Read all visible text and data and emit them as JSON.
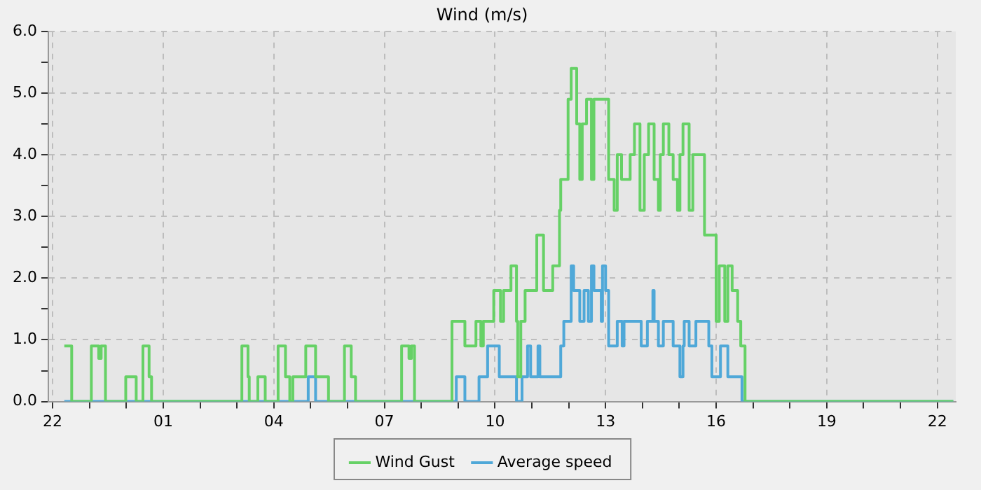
{
  "chart_data": {
    "type": "step",
    "title": "Wind (m/s)",
    "xlim": [
      "--01-01T21:53",
      "--01-02T22:30"
    ],
    "xticks": [
      {
        "value": "--01-01T22:00",
        "label": "22"
      },
      {
        "value": "--01-01T23:00",
        "label": null
      },
      {
        "value": "--01-02T00:00",
        "label": null
      },
      {
        "value": "--01-02T01:00",
        "label": "01"
      },
      {
        "value": "--01-02T02:00",
        "label": null
      },
      {
        "value": "--01-02T03:00",
        "label": null
      },
      {
        "value": "--01-02T04:00",
        "label": "04"
      },
      {
        "value": "--01-02T05:00",
        "label": null
      },
      {
        "value": "--01-02T06:00",
        "label": null
      },
      {
        "value": "--01-02T07:00",
        "label": "07"
      },
      {
        "value": "--01-02T08:00",
        "label": null
      },
      {
        "value": "--01-02T09:00",
        "label": null
      },
      {
        "value": "--01-02T10:00",
        "label": "10"
      },
      {
        "value": "--01-02T11:00",
        "label": null
      },
      {
        "value": "--01-02T12:00",
        "label": null
      },
      {
        "value": "--01-02T13:00",
        "label": "13"
      },
      {
        "value": "--01-02T14:00",
        "label": null
      },
      {
        "value": "--01-02T15:00",
        "label": null
      },
      {
        "value": "--01-02T16:00",
        "label": "16"
      },
      {
        "value": "--01-02T17:00",
        "label": null
      },
      {
        "value": "--01-02T18:00",
        "label": null
      },
      {
        "value": "--01-02T19:00",
        "label": "19"
      },
      {
        "value": "--01-02T20:00",
        "label": null
      },
      {
        "value": "--01-02T21:00",
        "label": null
      },
      {
        "value": "--01-02T22:00",
        "label": "22"
      }
    ],
    "ylim": [
      0,
      6
    ],
    "yticks": [
      {
        "value": 0,
        "label": "0.0"
      },
      {
        "value": 0.5,
        "label": null
      },
      {
        "value": 1,
        "label": "1.0"
      },
      {
        "value": 1.5,
        "label": null
      },
      {
        "value": 2,
        "label": "2.0"
      },
      {
        "value": 2.5,
        "label": null
      },
      {
        "value": 3,
        "label": "3.0"
      },
      {
        "value": 3.5,
        "label": null
      },
      {
        "value": 4,
        "label": "4.0"
      },
      {
        "value": 4.5,
        "label": null
      },
      {
        "value": 5,
        "label": "5.0"
      },
      {
        "value": 5.5,
        "label": null
      },
      {
        "value": 6,
        "label": "6.0"
      }
    ],
    "grid": true,
    "legend": "bottom",
    "marker": "none",
    "line_style": "solid",
    "series": [
      {
        "name": "Wind Gust",
        "color": "#66d166",
        "x": [
          "--01-01T22:19",
          "--01-01T22:31",
          "--01-01T23:03",
          "--01-01T23:15",
          "--01-01T23:19",
          "--01-01T23:26",
          "--01-01T23:59",
          "--01-02T00:16",
          "--01-02T00:27",
          "--01-02T00:37",
          "--01-02T00:41",
          "--01-02T03:08",
          "--01-02T03:18",
          "--01-02T03:20",
          "--01-02T03:34",
          "--01-02T03:46",
          "--01-02T04:07",
          "--01-02T04:19",
          "--01-02T04:26",
          "--01-02T04:31",
          "--01-02T04:52",
          "--01-02T05:08",
          "--01-02T05:29",
          "--01-02T05:55",
          "--01-02T06:06",
          "--01-02T06:13",
          "--01-02T07:28",
          "--01-02T07:40",
          "--01-02T07:44",
          "--01-02T07:49",
          "--01-02T08:50",
          "--01-02T09:11",
          "--01-02T09:29",
          "--01-02T09:37",
          "--01-02T09:41",
          "--01-02T09:58",
          "--01-02T10:09",
          "--01-02T10:14",
          "--01-02T10:26",
          "--01-02T10:35",
          "--01-02T10:37",
          "--01-02T10:42",
          "--01-02T10:49",
          "--01-02T11:08",
          "--01-02T11:19",
          "--01-02T11:34",
          "--01-02T11:45",
          "--01-02T11:47",
          "--01-02T11:59",
          "--01-02T12:04",
          "--01-02T12:13",
          "--01-02T12:18",
          "--01-02T12:22",
          "--01-02T12:29",
          "--01-02T12:37",
          "--01-02T12:41",
          "--01-02T13:05",
          "--01-02T13:14",
          "--01-02T13:19",
          "--01-02T13:26",
          "--01-02T13:40",
          "--01-02T13:47",
          "--01-02T13:56",
          "--01-02T14:03",
          "--01-02T14:10",
          "--01-02T14:19",
          "--01-02T14:26",
          "--01-02T14:29",
          "--01-02T14:34",
          "--01-02T14:43",
          "--01-02T14:50",
          "--01-02T14:57",
          "--01-02T15:01",
          "--01-02T15:06",
          "--01-02T15:16",
          "--01-02T15:22",
          "--01-02T15:41",
          "--01-02T16:00",
          "--01-02T16:05",
          "--01-02T16:14",
          "--01-02T16:19",
          "--01-02T16:26",
          "--01-02T16:35",
          "--01-02T16:40",
          "--01-02T16:47",
          "--01-02T22:26"
        ],
        "values": [
          0.9,
          0,
          0.9,
          0.7,
          0.9,
          0,
          0.4,
          0,
          0.9,
          0.4,
          0,
          0.9,
          0.4,
          0,
          0.4,
          0,
          0.9,
          0.4,
          0,
          0.4,
          0.9,
          0.4,
          0,
          0.9,
          0.4,
          0,
          0.9,
          0.7,
          0.9,
          0,
          1.3,
          0.9,
          1.3,
          0.9,
          1.3,
          1.8,
          1.3,
          1.8,
          2.2,
          1.3,
          0.4,
          1.3,
          1.8,
          2.7,
          1.8,
          2.2,
          3.1,
          3.6,
          4.9,
          5.4,
          4.5,
          3.6,
          4.5,
          4.9,
          3.6,
          4.9,
          3.6,
          3.1,
          4.0,
          3.6,
          4.0,
          4.5,
          3.1,
          4.0,
          4.5,
          3.6,
          3.1,
          4.0,
          4.5,
          4.0,
          3.6,
          3.1,
          4.0,
          4.5,
          3.1,
          4.0,
          2.7,
          1.3,
          2.2,
          1.3,
          2.2,
          1.8,
          1.3,
          0.9,
          0,
          0
        ]
      },
      {
        "name": "Average speed",
        "color": "#4fa8d8",
        "x": [
          "--01-01T22:19",
          "--01-02T04:56",
          "--01-02T05:08",
          "--01-02T08:57",
          "--01-02T09:11",
          "--01-02T09:34",
          "--01-02T09:48",
          "--01-02T10:07",
          "--01-02T10:35",
          "--01-02T10:44",
          "--01-02T10:53",
          "--01-02T10:58",
          "--01-02T11:10",
          "--01-02T11:13",
          "--01-02T11:47",
          "--01-02T11:52",
          "--01-02T12:04",
          "--01-02T12:08",
          "--01-02T12:18",
          "--01-02T12:25",
          "--01-02T12:32",
          "--01-02T12:37",
          "--01-02T12:41",
          "--01-02T12:53",
          "--01-02T12:55",
          "--01-02T13:00",
          "--01-02T13:05",
          "--01-02T13:19",
          "--01-02T13:27",
          "--01-02T13:30",
          "--01-02T13:58",
          "--01-02T14:08",
          "--01-02T14:17",
          "--01-02T14:19",
          "--01-02T14:26",
          "--01-02T14:34",
          "--01-02T14:50",
          "--01-02T15:01",
          "--01-02T15:06",
          "--01-02T15:08",
          "--01-02T15:16",
          "--01-02T15:27",
          "--01-02T15:48",
          "--01-02T15:53",
          "--01-02T16:07",
          "--01-02T16:19",
          "--01-02T16:42",
          "--01-02T22:26"
        ],
        "values": [
          0,
          0.4,
          0,
          0.4,
          0,
          0.4,
          0.9,
          0.4,
          0,
          0.4,
          0.9,
          0.4,
          0.9,
          0.4,
          0.9,
          1.3,
          2.2,
          1.8,
          1.3,
          1.8,
          1.3,
          2.2,
          1.8,
          1.3,
          2.2,
          1.8,
          0.9,
          1.3,
          0.9,
          1.3,
          0.9,
          1.3,
          1.8,
          1.3,
          0.9,
          1.3,
          0.9,
          0.4,
          0.9,
          1.3,
          0.9,
          1.3,
          0.9,
          0.4,
          0.9,
          0.4,
          0,
          0
        ]
      }
    ]
  }
}
